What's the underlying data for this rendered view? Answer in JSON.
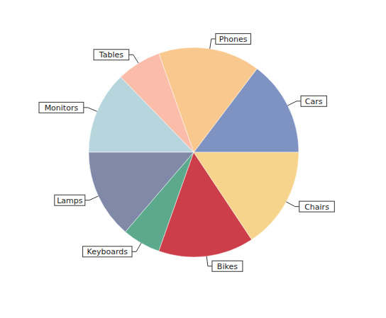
{
  "chart_data": {
    "type": "pie",
    "categories": [
      "Cars",
      "Phones",
      "Tables",
      "Monitors",
      "Lamps",
      "Keyboards",
      "Bikes",
      "Chairs"
    ],
    "values": [
      15,
      16,
      7,
      13,
      14,
      6,
      15,
      16
    ],
    "colors": [
      "#7f93c2",
      "#f9c88e",
      "#fbbcaa",
      "#b7d5dc",
      "#8089a8",
      "#5ca98d",
      "#cc3f4a",
      "#f6d48c"
    ]
  }
}
